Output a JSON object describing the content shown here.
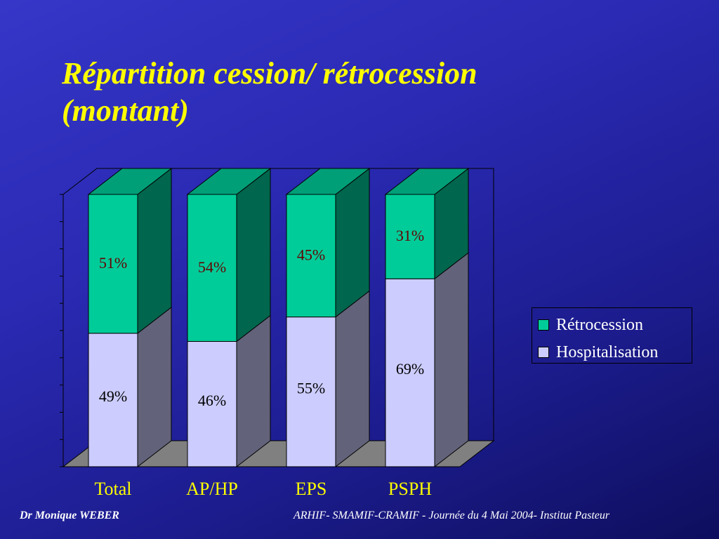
{
  "slide": {
    "title_line1": "Répartition cession/ rétrocession",
    "title_line2": "(montant)",
    "footer_left": "Dr Monique WEBER",
    "footer_right": "ARHIF- SMAMIF-CRAMIF - Journée du 4 Mai 2004- Institut Pasteur"
  },
  "colors": {
    "title": "#ffff00",
    "retrocession": "#00cc99",
    "hospitalisation": "#ccccff",
    "label_retrocession": "#660000",
    "label_hospitalisation": "#000000",
    "category_label": "#ffff00"
  },
  "legend": {
    "items": [
      {
        "label": "Rétrocession",
        "color": "#00cc99"
      },
      {
        "label": "Hospitalisation",
        "color": "#ccccff"
      }
    ]
  },
  "chart_data": {
    "type": "bar",
    "stacked": true,
    "percent_stacked": true,
    "three_d": true,
    "categories": [
      "Total",
      "AP/HP",
      "EPS",
      "PSPH"
    ],
    "series": [
      {
        "name": "Hospitalisation",
        "values": [
          49,
          46,
          55,
          69
        ],
        "labels": [
          "49%",
          "46%",
          "55%",
          "69%"
        ],
        "color": "#ccccff"
      },
      {
        "name": "Rétrocession",
        "values": [
          51,
          54,
          45,
          31
        ],
        "labels": [
          "51%",
          "54%",
          "45%",
          "31%"
        ],
        "color": "#00cc99"
      }
    ],
    "ylim": [
      0,
      100
    ],
    "legend_position": "right",
    "grid": false
  }
}
